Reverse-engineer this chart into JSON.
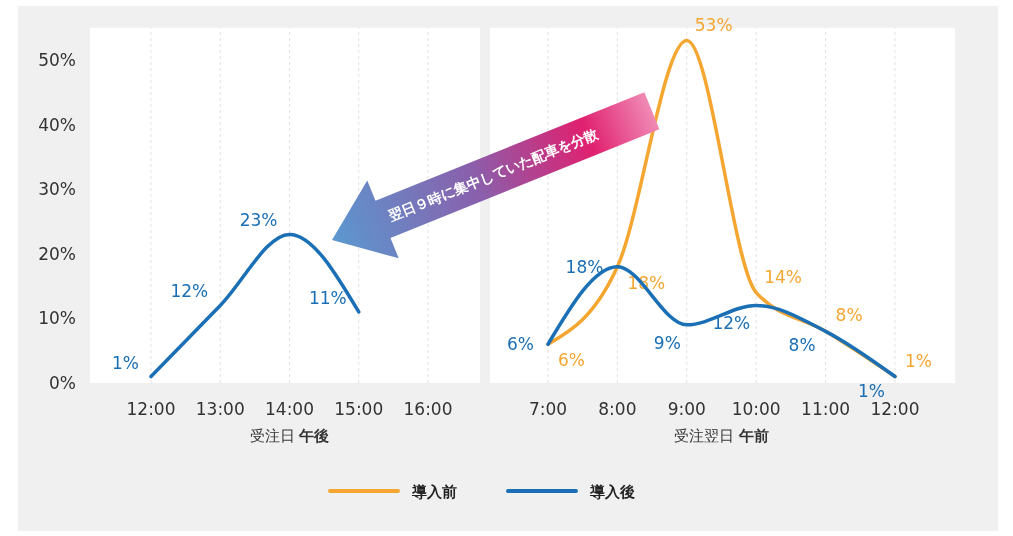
{
  "chart_data": [
    {
      "type": "line",
      "categories": [
        "12:00",
        "13:00",
        "14:00",
        "15:00",
        "16:00"
      ],
      "xlabel": "受注日 午後",
      "ylim": [
        0,
        55
      ],
      "yticks": [
        {
          "value": 0,
          "label": "0%"
        },
        {
          "value": 10,
          "label": "10%"
        },
        {
          "value": 20,
          "label": "20%"
        },
        {
          "value": 30,
          "label": "30%"
        },
        {
          "value": 40,
          "label": "40%"
        },
        {
          "value": 50,
          "label": "50%"
        }
      ],
      "grid": "x",
      "line_style": "solid",
      "marker": "none",
      "series": [
        {
          "color": "#1a6fb5",
          "values": [
            1,
            12,
            23,
            11,
            null
          ],
          "value_labels": [
            "1%",
            "12%",
            "23%",
            "11%",
            null
          ]
        }
      ],
      "annotations": [
        "翌日９時に集中していた配車を分散"
      ]
    },
    {
      "type": "line",
      "categories": [
        "7:00",
        "8:00",
        "9:00",
        "10:00",
        "11:00",
        "12:00"
      ],
      "xlabel": "受注翌日 午前",
      "ylim": [
        0,
        55
      ],
      "tick_labels": "x",
      "grid": "x",
      "line_style": "solid",
      "marker": "none",
      "legend": "bottom",
      "series": [
        {
          "name": "導入前",
          "color": "#f5a631",
          "values": [
            6,
            18,
            53,
            14,
            8,
            1
          ],
          "value_labels": [
            "6%",
            "18%",
            "53%",
            "14%",
            "8%",
            "1%"
          ]
        },
        {
          "name": "導入後",
          "color": "#1a6fb5",
          "values": [
            6,
            18,
            9,
            12,
            8,
            1
          ],
          "value_labels": [
            "6%",
            "18%",
            "9%",
            "12%",
            "8%",
            "1%"
          ]
        }
      ]
    }
  ]
}
